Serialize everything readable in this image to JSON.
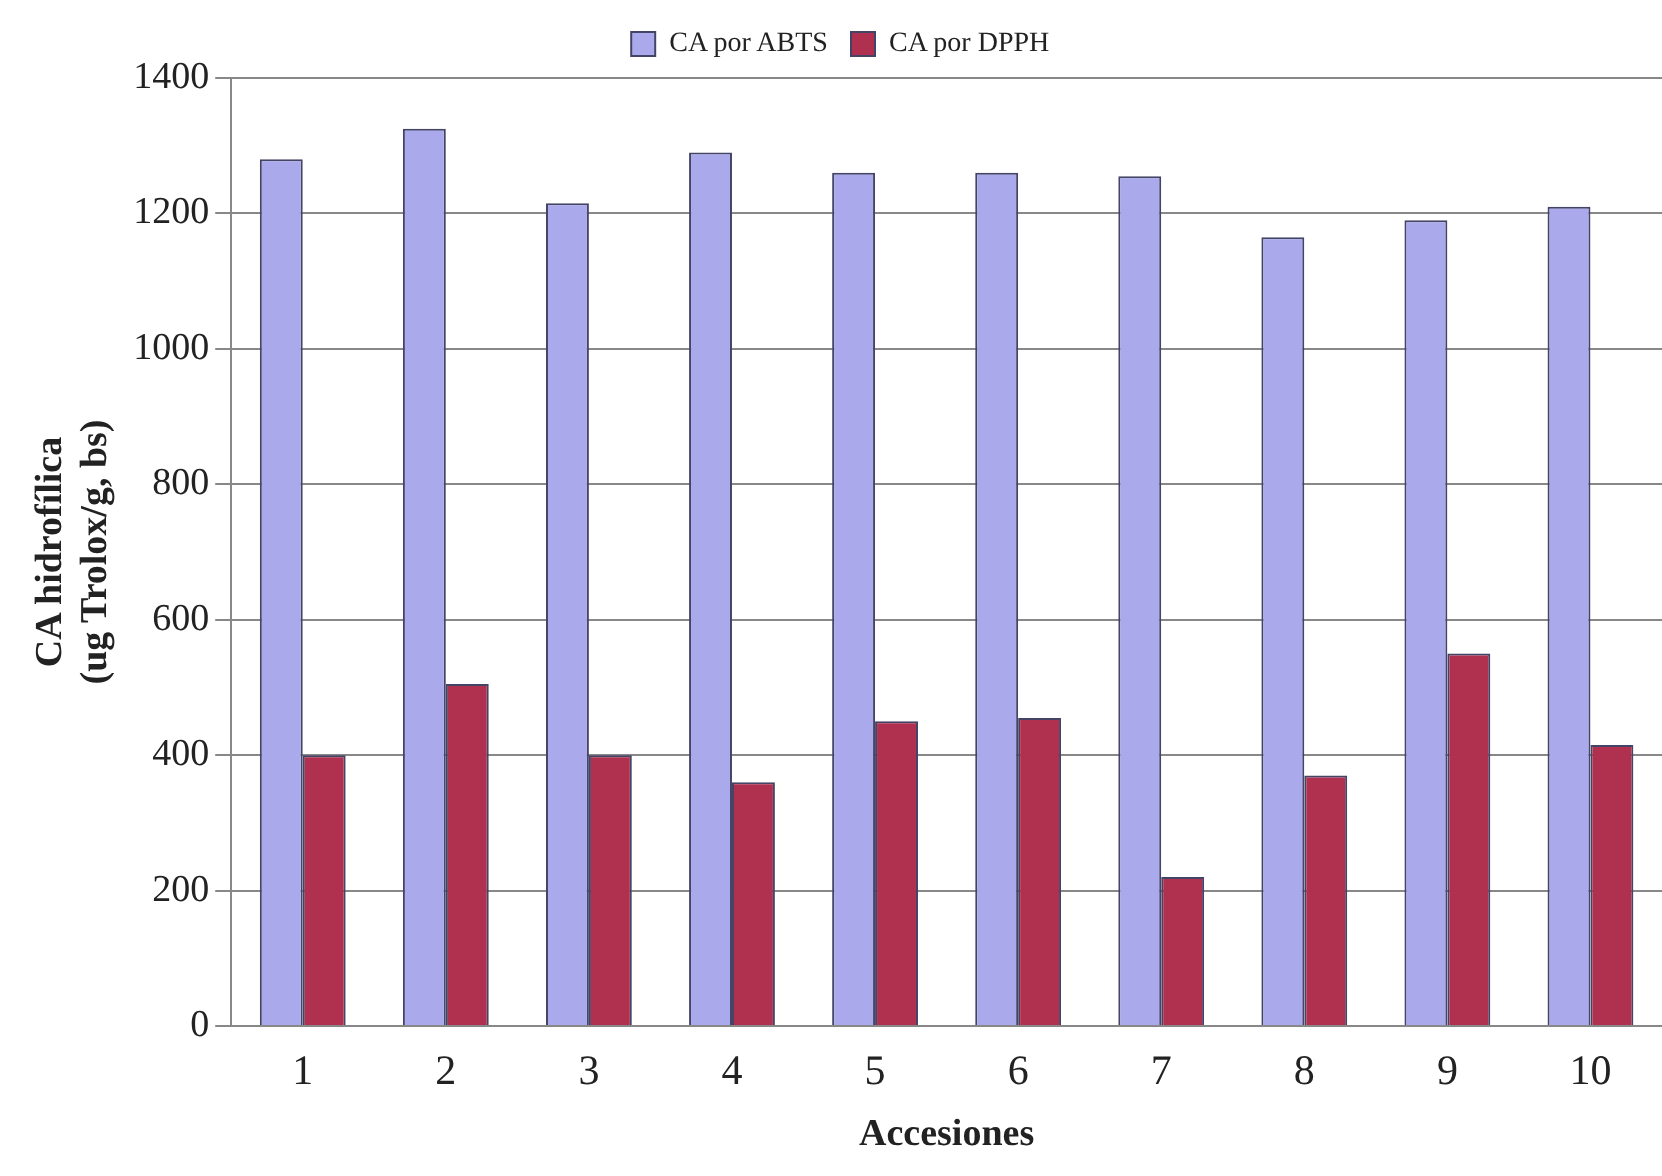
{
  "chart_data": {
    "type": "bar",
    "xlabel": "Accesiones",
    "ylabel": "CA hidrofílica\n(ug Trolox/g, bs)",
    "categories": [
      "1",
      "2",
      "3",
      "4",
      "5",
      "6",
      "7",
      "8",
      "9",
      "10"
    ],
    "series": [
      {
        "name": "CA por ABTS",
        "color": "#a9a9ec",
        "values": [
          1280,
          1325,
          1215,
          1290,
          1260,
          1260,
          1255,
          1165,
          1190,
          1210
        ]
      },
      {
        "name": "CA por DPPH",
        "color": "#b03050",
        "values": [
          400,
          505,
          400,
          360,
          450,
          455,
          220,
          370,
          550,
          415
        ]
      }
    ],
    "ylim": [
      0,
      1400
    ],
    "yticks": [
      0,
      200,
      400,
      600,
      800,
      1000,
      1200,
      1400
    ],
    "grid": "y",
    "legend": "top"
  }
}
